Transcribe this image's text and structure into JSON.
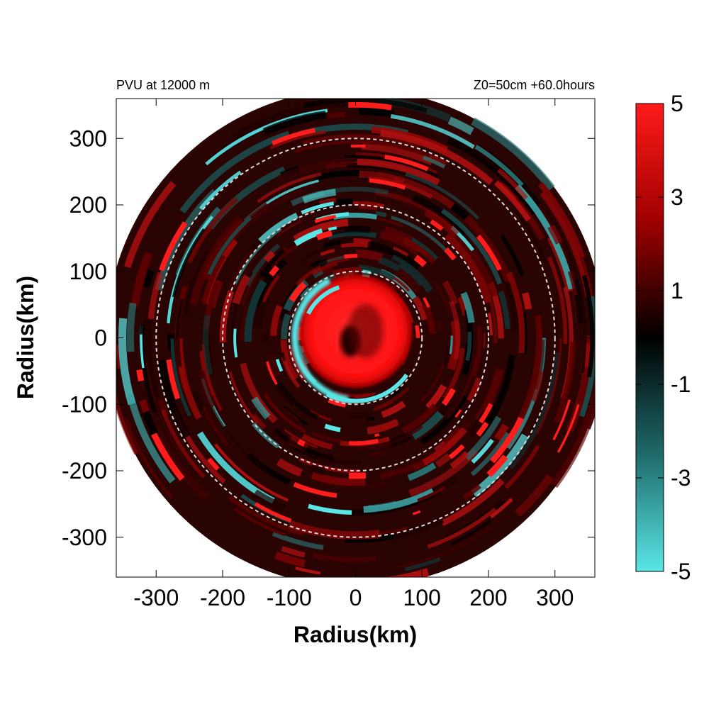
{
  "chart_data": {
    "type": "heatmap",
    "title_left": "PVU at 12000 m",
    "title_right": "Z0=50cm  +60.0hours",
    "xlabel": "Radius(km)",
    "ylabel": "Radius(km)",
    "xlim": [
      -360,
      360
    ],
    "ylim": [
      -360,
      360
    ],
    "x_ticks": [
      -300,
      -200,
      -100,
      0,
      100,
      200,
      300
    ],
    "y_ticks": [
      300,
      200,
      100,
      0,
      -100,
      -200,
      -300
    ],
    "x_tick_labels": [
      "-300",
      "-200",
      "-100",
      "0",
      "100",
      "200",
      "300"
    ],
    "y_tick_labels": [
      "300",
      "200",
      "100",
      "0",
      "-100",
      "-200",
      "-300"
    ],
    "domain_radius_km": 375,
    "reference_circles_km": [
      100,
      200,
      300
    ],
    "colorbar": {
      "range": [
        -5,
        5
      ],
      "ticks": [
        5,
        3,
        1,
        -1,
        -3,
        -5
      ],
      "tick_labels": [
        "5",
        "3",
        "1",
        "-1",
        "-3",
        "-5"
      ],
      "colors": {
        "low": "#5ae6e6",
        "mid": "#000000",
        "high": "#ff1a1a"
      }
    },
    "features": [
      {
        "label": "core positive PV",
        "x_km": 0,
        "y_km": 10,
        "radius_km": 85,
        "value": 5
      },
      {
        "label": "inner negative arc",
        "x_km": -55,
        "y_km": -20,
        "radius_km": 95,
        "value": -4
      }
    ]
  }
}
